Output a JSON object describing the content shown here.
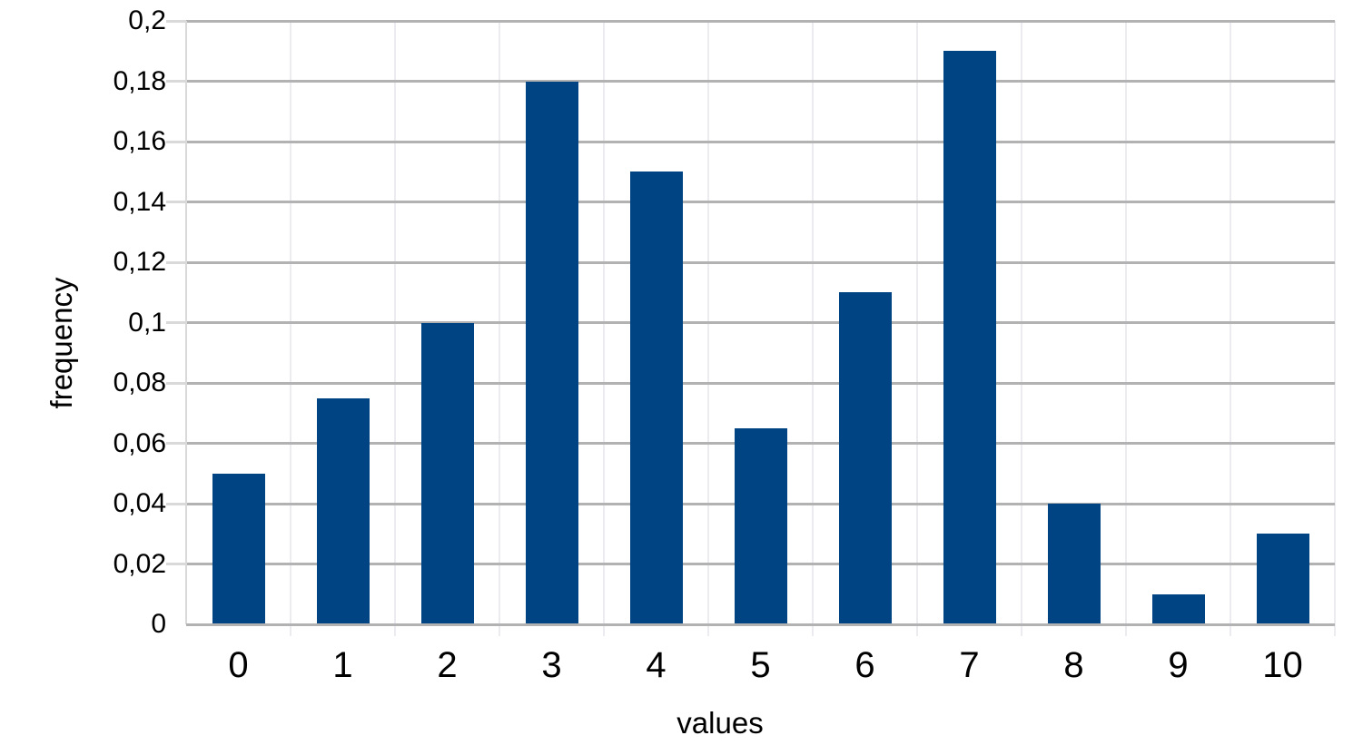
{
  "chart_data": {
    "type": "bar",
    "title": "",
    "xlabel": "values",
    "ylabel": "frequency",
    "categories": [
      "0",
      "1",
      "2",
      "3",
      "4",
      "5",
      "6",
      "7",
      "8",
      "9",
      "10"
    ],
    "values": [
      0.05,
      0.075,
      0.1,
      0.18,
      0.15,
      0.065,
      0.11,
      0.19,
      0.04,
      0.01,
      0.03
    ],
    "series_name": "frequency",
    "ylim": [
      0,
      0.2
    ],
    "y_tick_step": 0.02,
    "y_tick_labels": [
      "0",
      "0,02",
      "0,04",
      "0,06",
      "0,08",
      "0,1",
      "0,12",
      "0,14",
      "0,16",
      "0,18",
      "0,2"
    ],
    "decimal_separator": ",",
    "grid": "horizontal major lines every 0.02; faint vertical lines at category boundaries",
    "legend_position": "none",
    "colors": {
      "bar": "#004484",
      "grid_major": "#b2b2b2",
      "grid_minor": "#ebebf0",
      "axis_line": "#b2b2b2",
      "tick": "#d9d9d9",
      "text": "#000000",
      "background": "#ffffff"
    }
  }
}
